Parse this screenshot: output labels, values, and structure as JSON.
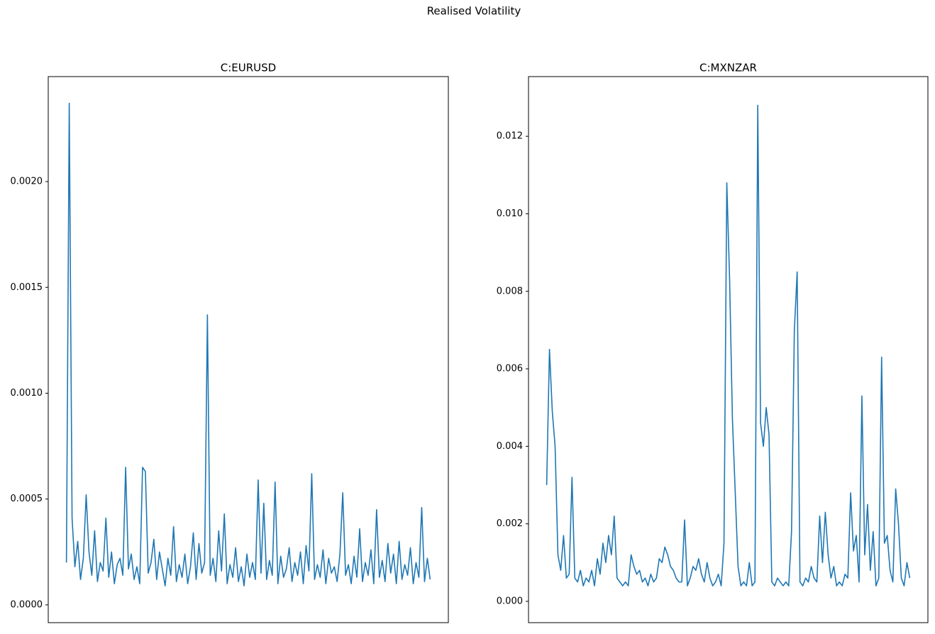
{
  "title": "Realised Volatility",
  "chart_data": [
    {
      "type": "line",
      "title": "C:EURUSD",
      "color": "#1f77b4",
      "grid": false,
      "ylim": [
        -8.4e-05,
        0.002496
      ],
      "yticks": [
        {
          "value": 0,
          "label": "0.0000"
        },
        {
          "value": 0.0005,
          "label": "0.0005"
        },
        {
          "value": 0.001,
          "label": "0.0010"
        },
        {
          "value": 0.0015,
          "label": "0.0015"
        },
        {
          "value": 0.002,
          "label": "0.0020"
        }
      ],
      "values": [
        0.0002,
        0.00237,
        0.00041,
        0.00018,
        0.0003,
        0.00012,
        0.00022,
        0.00052,
        0.00025,
        0.00014,
        0.00035,
        0.00011,
        0.0002,
        0.00016,
        0.00041,
        0.00013,
        0.00025,
        0.0001,
        0.00019,
        0.00022,
        0.00014,
        0.00065,
        0.00017,
        0.00024,
        0.00012,
        0.00018,
        0.0001,
        0.00065,
        0.00063,
        0.00015,
        0.0002,
        0.00031,
        0.00012,
        0.00025,
        0.00017,
        9e-05,
        0.00022,
        0.00014,
        0.00037,
        0.00011,
        0.00019,
        0.00013,
        0.00024,
        0.0001,
        0.00018,
        0.00034,
        0.00012,
        0.00029,
        0.00015,
        0.0002,
        0.00137,
        0.00014,
        0.00022,
        0.00011,
        0.00035,
        0.00016,
        0.00043,
        0.0001,
        0.00019,
        0.00013,
        0.00027,
        0.00011,
        0.00018,
        9e-05,
        0.00024,
        0.00013,
        0.0002,
        0.00012,
        0.00059,
        0.00015,
        0.00048,
        0.00012,
        0.00021,
        0.00014,
        0.00058,
        0.0001,
        0.00023,
        0.00013,
        0.00017,
        0.00027,
        0.00011,
        0.0002,
        0.00014,
        0.00025,
        0.0001,
        0.00028,
        0.00016,
        0.00062,
        0.00012,
        0.00019,
        0.00013,
        0.00026,
        0.0001,
        0.00022,
        0.00015,
        0.00018,
        0.00011,
        0.00024,
        0.00053,
        0.00014,
        0.00019,
        0.0001,
        0.00023,
        0.00013,
        0.00036,
        0.00011,
        0.0002,
        0.00014,
        0.00026,
        0.0001,
        0.00045,
        0.00013,
        0.00021,
        0.00011,
        0.00029,
        0.00015,
        0.00024,
        0.0001,
        0.0003,
        0.00012,
        0.00019,
        0.00014,
        0.00027,
        0.0001,
        0.0002,
        0.00013,
        0.00046,
        0.00011,
        0.00022,
        0.00012
      ]
    },
    {
      "type": "line",
      "title": "C:MXNZAR",
      "color": "#1f77b4",
      "grid": false,
      "ylim": [
        -0.00055,
        0.01354
      ],
      "yticks": [
        {
          "value": 0,
          "label": "0.000"
        },
        {
          "value": 0.002,
          "label": "0.002"
        },
        {
          "value": 0.004,
          "label": "0.004"
        },
        {
          "value": 0.006,
          "label": "0.006"
        },
        {
          "value": 0.008,
          "label": "0.008"
        },
        {
          "value": 0.01,
          "label": "0.010"
        },
        {
          "value": 0.012,
          "label": "0.012"
        }
      ],
      "values": [
        0.003,
        0.0065,
        0.0049,
        0.004,
        0.0012,
        0.0008,
        0.0017,
        0.0006,
        0.0007,
        0.0032,
        0.0006,
        0.0005,
        0.0008,
        0.0004,
        0.0006,
        0.0005,
        0.0008,
        0.0004,
        0.0011,
        0.0007,
        0.0015,
        0.001,
        0.0017,
        0.0012,
        0.0022,
        0.0006,
        0.0005,
        0.0004,
        0.0005,
        0.0004,
        0.0012,
        0.0009,
        0.0007,
        0.0008,
        0.0005,
        0.0006,
        0.0004,
        0.0007,
        0.0005,
        0.0006,
        0.0011,
        0.001,
        0.0014,
        0.0012,
        0.0009,
        0.0008,
        0.0006,
        0.0005,
        0.0005,
        0.0021,
        0.0004,
        0.0006,
        0.0009,
        0.0008,
        0.0011,
        0.0007,
        0.0005,
        0.001,
        0.0006,
        0.0004,
        0.0005,
        0.0007,
        0.0004,
        0.0015,
        0.0108,
        0.0083,
        0.0047,
        0.0028,
        0.0009,
        0.0004,
        0.0005,
        0.0004,
        0.001,
        0.0004,
        0.0005,
        0.0128,
        0.0046,
        0.004,
        0.005,
        0.0043,
        0.0005,
        0.0004,
        0.0006,
        0.0005,
        0.0004,
        0.0005,
        0.0004,
        0.0018,
        0.007,
        0.0085,
        0.0005,
        0.0004,
        0.0006,
        0.0005,
        0.0009,
        0.0006,
        0.0005,
        0.0022,
        0.001,
        0.0023,
        0.0012,
        0.0006,
        0.0009,
        0.0004,
        0.0005,
        0.0004,
        0.0007,
        0.0006,
        0.0028,
        0.0013,
        0.0017,
        0.0005,
        0.0053,
        0.0012,
        0.0025,
        0.0008,
        0.0018,
        0.0004,
        0.0006,
        0.0063,
        0.0015,
        0.0017,
        0.0008,
        0.0005,
        0.0029,
        0.002,
        0.0006,
        0.0004,
        0.001,
        0.0006
      ]
    }
  ]
}
